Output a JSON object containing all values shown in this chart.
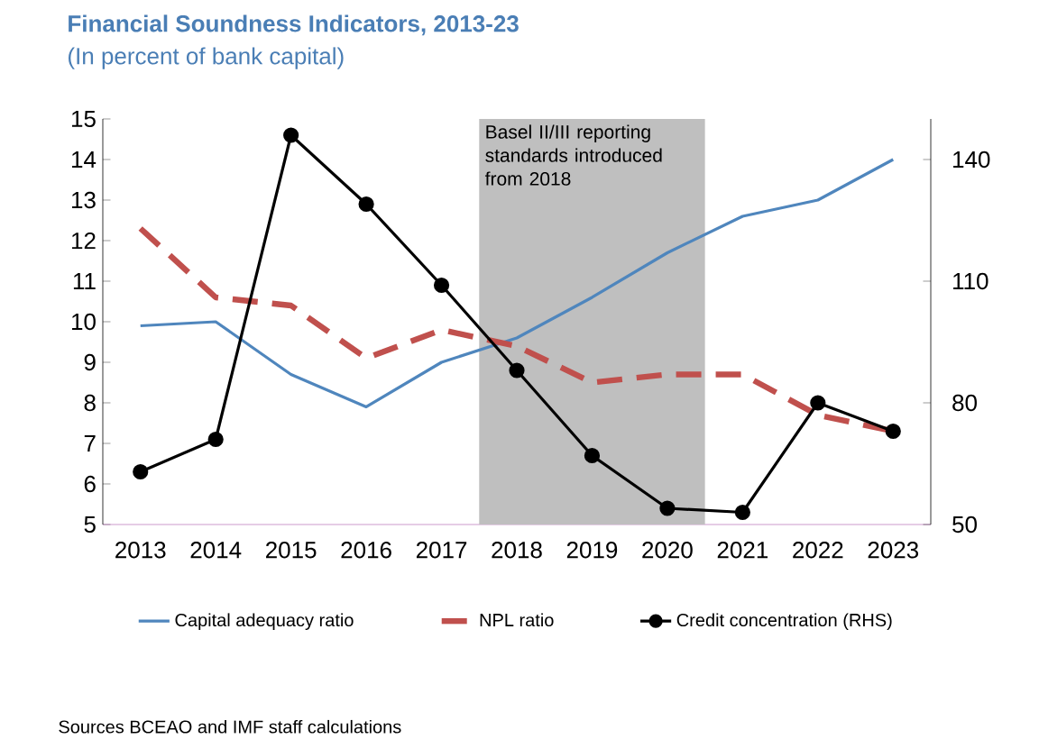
{
  "chart_data": {
    "type": "line",
    "title": "Financial Soundness Indicators, 2013-23",
    "subtitle": "(In percent of bank capital)",
    "x": [
      2013,
      2014,
      2015,
      2016,
      2017,
      2018,
      2019,
      2020,
      2021,
      2022,
      2023
    ],
    "xlim": [
      2012.5,
      2023.5
    ],
    "xticks": [
      2013,
      2014,
      2015,
      2016,
      2017,
      2018,
      2019,
      2020,
      2021,
      2022,
      2023
    ],
    "ylim": [
      5,
      15
    ],
    "yticks": [
      5,
      6,
      7,
      8,
      9,
      10,
      11,
      12,
      13,
      14,
      15
    ],
    "y2lim": [
      50,
      150
    ],
    "y2ticks": [
      50,
      80,
      110,
      140
    ],
    "series": [
      {
        "name": "Capital adequacy ratio",
        "color": "#4f86bd",
        "line_style": "solid",
        "marker": "none",
        "values": [
          9.9,
          10.0,
          8.7,
          7.9,
          9.0,
          9.6,
          10.6,
          11.7,
          12.6,
          13.0,
          14.0
        ]
      },
      {
        "name": "NPL ratio",
        "color": "#c0504d",
        "line_style": "dashed",
        "marker": "none",
        "values": [
          12.3,
          10.6,
          10.4,
          9.1,
          9.8,
          9.4,
          8.5,
          8.7,
          8.7,
          7.7,
          7.3
        ]
      },
      {
        "name": "Credit concentration (RHS)",
        "color": "#000000",
        "line_style": "solid",
        "marker": "circle",
        "axis": "y2",
        "values": [
          63,
          71,
          146,
          129,
          109,
          88,
          67,
          54,
          53,
          80,
          73
        ]
      }
    ],
    "bands": [
      {
        "axis": "x",
        "from": 2017.5,
        "to": 2020.5,
        "label": "Basel II/III reporting standards introduced from 2018",
        "color": "#bfbfbf"
      }
    ],
    "grid": false,
    "legend": "bottom",
    "annotations": [
      "Sources BCEAO and IMF staff calculations"
    ]
  }
}
